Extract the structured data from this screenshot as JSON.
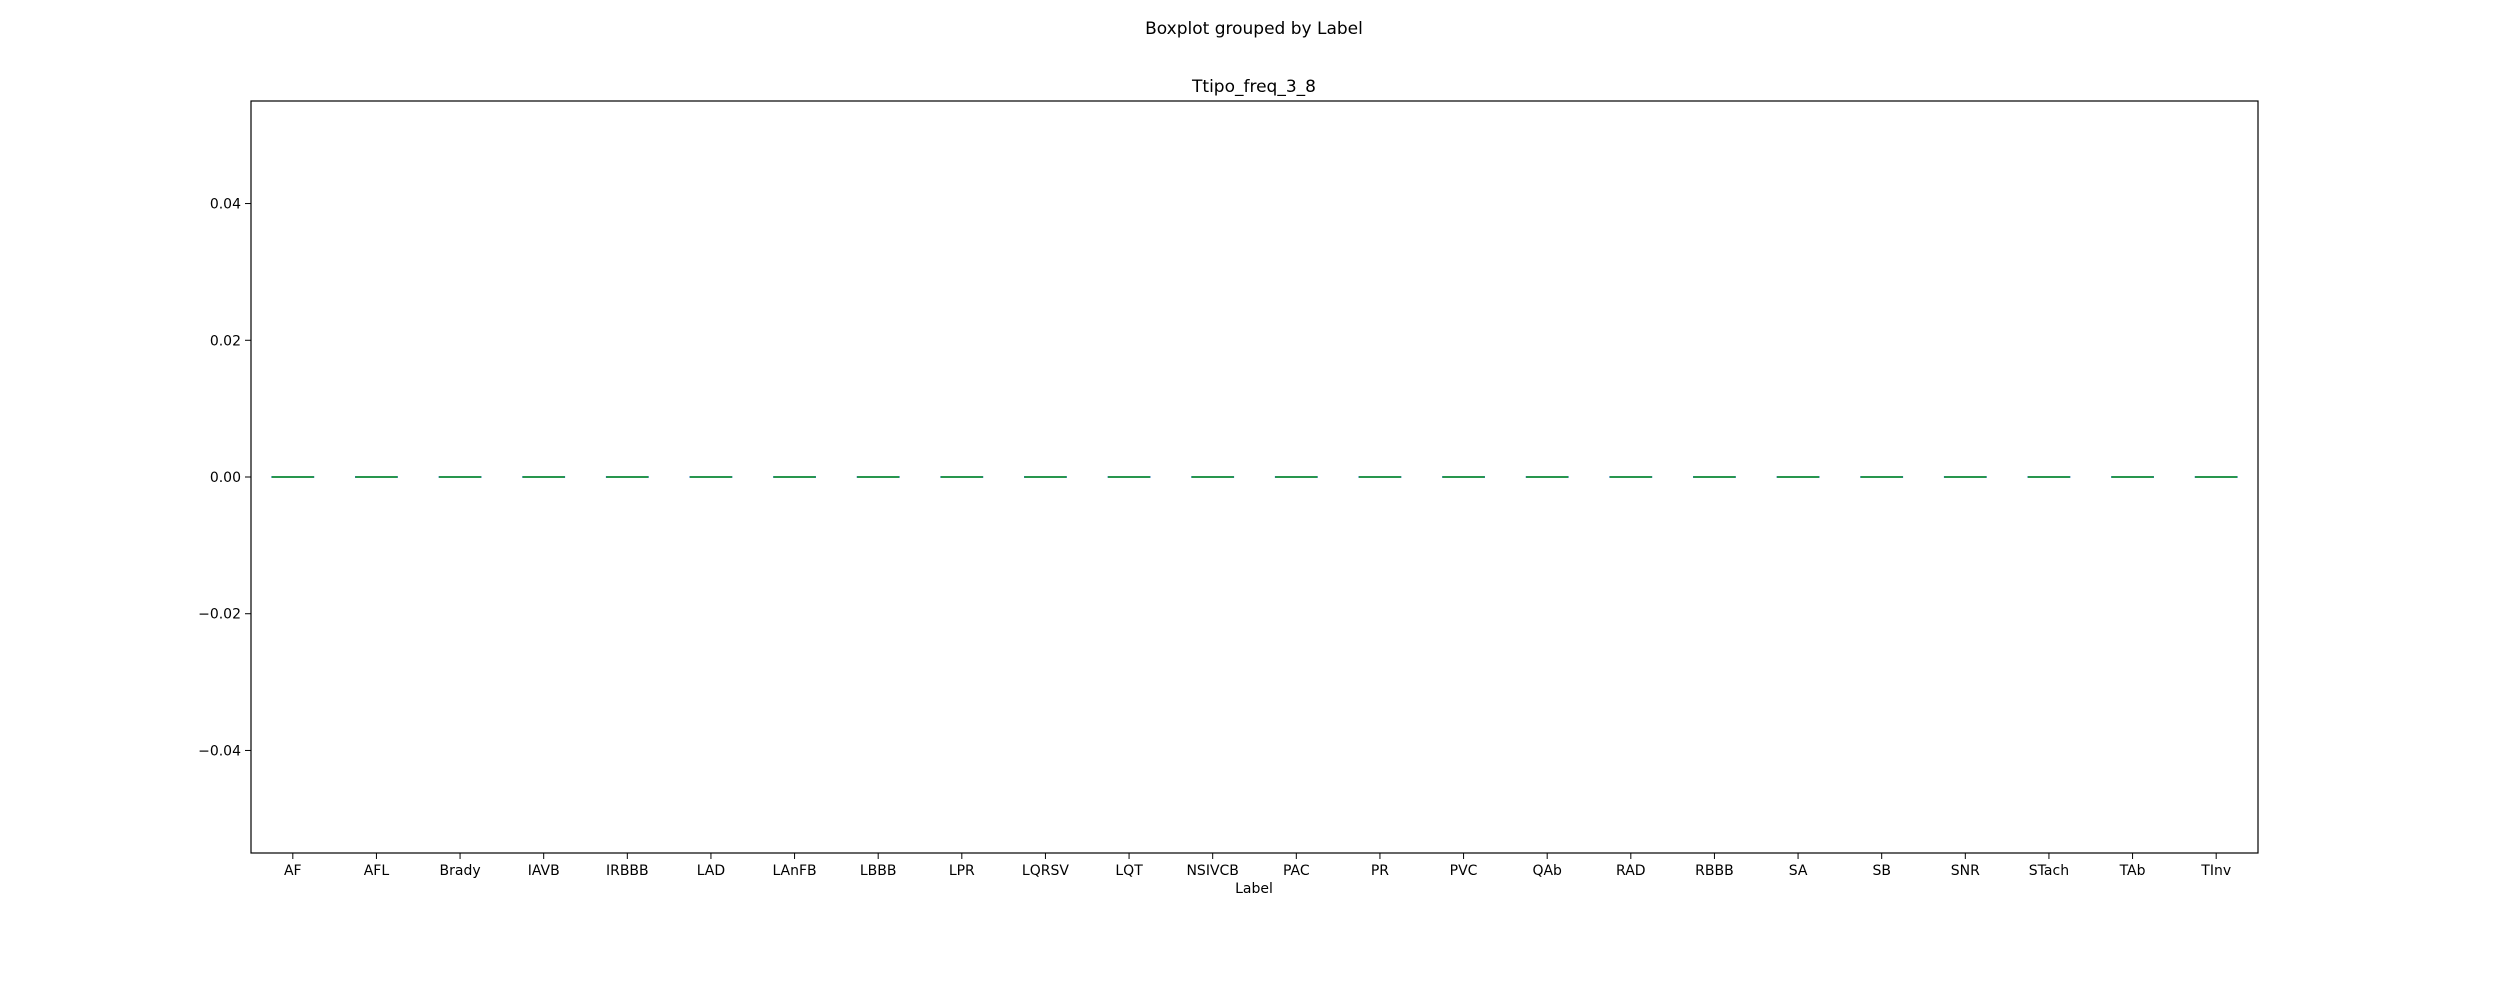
{
  "suptitle": "Boxplot grouped by Label",
  "chart_data": {
    "type": "box",
    "title": "Ttipo_freq_3_8",
    "xlabel": "Label",
    "ylabel": "",
    "ylim": [
      -0.055,
      0.055
    ],
    "yticks": [
      0.04,
      0.02,
      0.0,
      -0.02,
      -0.04
    ],
    "ytick_labels": [
      "0.04",
      "0.02",
      "0.00",
      "−0.02",
      "−0.04"
    ],
    "grid": false,
    "categories": [
      "AF",
      "AFL",
      "Brady",
      "IAVB",
      "IRBBB",
      "LAD",
      "LAnFB",
      "LBBB",
      "LPR",
      "LQRSV",
      "LQT",
      "NSIVCB",
      "PAC",
      "PR",
      "PVC",
      "QAb",
      "RAD",
      "RBBB",
      "SA",
      "SB",
      "SNR",
      "STach",
      "TAb",
      "TInv"
    ],
    "boxes": [
      {
        "min": 0,
        "q1": 0,
        "median": 0,
        "q3": 0,
        "max": 0
      },
      {
        "min": 0,
        "q1": 0,
        "median": 0,
        "q3": 0,
        "max": 0
      },
      {
        "min": 0,
        "q1": 0,
        "median": 0,
        "q3": 0,
        "max": 0
      },
      {
        "min": 0,
        "q1": 0,
        "median": 0,
        "q3": 0,
        "max": 0
      },
      {
        "min": 0,
        "q1": 0,
        "median": 0,
        "q3": 0,
        "max": 0
      },
      {
        "min": 0,
        "q1": 0,
        "median": 0,
        "q3": 0,
        "max": 0
      },
      {
        "min": 0,
        "q1": 0,
        "median": 0,
        "q3": 0,
        "max": 0
      },
      {
        "min": 0,
        "q1": 0,
        "median": 0,
        "q3": 0,
        "max": 0
      },
      {
        "min": 0,
        "q1": 0,
        "median": 0,
        "q3": 0,
        "max": 0
      },
      {
        "min": 0,
        "q1": 0,
        "median": 0,
        "q3": 0,
        "max": 0
      },
      {
        "min": 0,
        "q1": 0,
        "median": 0,
        "q3": 0,
        "max": 0
      },
      {
        "min": 0,
        "q1": 0,
        "median": 0,
        "q3": 0,
        "max": 0
      },
      {
        "min": 0,
        "q1": 0,
        "median": 0,
        "q3": 0,
        "max": 0
      },
      {
        "min": 0,
        "q1": 0,
        "median": 0,
        "q3": 0,
        "max": 0
      },
      {
        "min": 0,
        "q1": 0,
        "median": 0,
        "q3": 0,
        "max": 0
      },
      {
        "min": 0,
        "q1": 0,
        "median": 0,
        "q3": 0,
        "max": 0
      },
      {
        "min": 0,
        "q1": 0,
        "median": 0,
        "q3": 0,
        "max": 0
      },
      {
        "min": 0,
        "q1": 0,
        "median": 0,
        "q3": 0,
        "max": 0
      },
      {
        "min": 0,
        "q1": 0,
        "median": 0,
        "q3": 0,
        "max": 0
      },
      {
        "min": 0,
        "q1": 0,
        "median": 0,
        "q3": 0,
        "max": 0
      },
      {
        "min": 0,
        "q1": 0,
        "median": 0,
        "q3": 0,
        "max": 0
      },
      {
        "min": 0,
        "q1": 0,
        "median": 0,
        "q3": 0,
        "max": 0
      },
      {
        "min": 0,
        "q1": 0,
        "median": 0,
        "q3": 0,
        "max": 0
      },
      {
        "min": 0,
        "q1": 0,
        "median": 0,
        "q3": 0,
        "max": 0
      }
    ],
    "colors": {
      "box": "#1f77b4",
      "median": "#2ca02c",
      "axis": "#000000"
    }
  }
}
